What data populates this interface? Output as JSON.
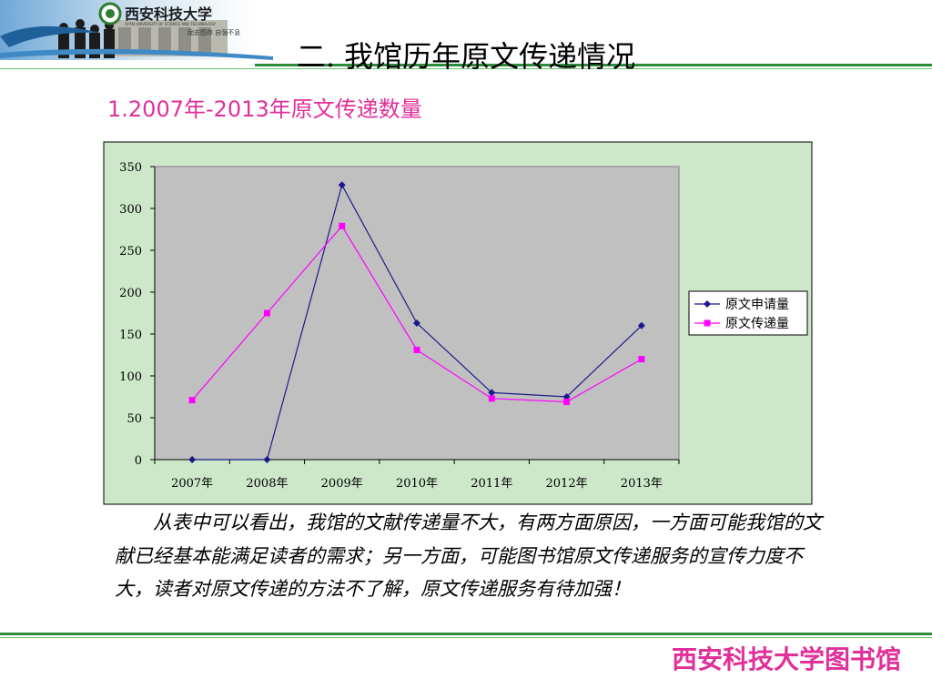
{
  "header": {
    "university_name": "西安科技大学",
    "university_name_en": "XI'AN UNIVERSITY OF SCIENCE AND TECHNOLOGY",
    "motto": "励志图存  自强不息"
  },
  "slide": {
    "title": "二. 我馆历年原文传递情况",
    "subtitle": "1.2007年-2013年原文传递数量"
  },
  "chart_data": {
    "type": "line",
    "categories": [
      "2007年",
      "2008年",
      "2009年",
      "2010年",
      "2011年",
      "2012年",
      "2013年"
    ],
    "ylim": [
      0,
      350
    ],
    "yticks": [
      "0",
      "50",
      "100",
      "150",
      "200",
      "250",
      "300",
      "350"
    ],
    "grid": false,
    "legend_position": "right",
    "series": [
      {
        "name": "原文申请量",
        "values": [
          0,
          0,
          328,
          163,
          80,
          75,
          160
        ],
        "color": "#1a1a8c",
        "marker": "diamond"
      },
      {
        "name": "原文传递量",
        "values": [
          71,
          175,
          279,
          131,
          73,
          69,
          120
        ],
        "color": "#ff00ff",
        "marker": "square"
      }
    ],
    "plot_background": "#c0c0c0",
    "frame_background": "#cce8c8"
  },
  "body_text": "从表中可以看出，我馆的文献传递量不大，有两方面原因，一方面可能我馆的文献已经基本能满足读者的需求；另一方面，可能图书馆原文传递服务的宣传力度不大，读者对原文传递的方法不了解，原文传递服务有待加强！",
  "footer": {
    "label": "西安科技大学图书馆"
  }
}
